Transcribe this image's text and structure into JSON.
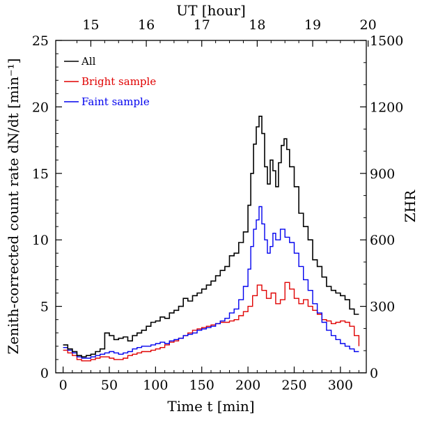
{
  "chart_data": {
    "type": "line",
    "xlabel": "Time t [min]",
    "x2label": "UT [hour]",
    "ylabel": "Zenith-corrected count rate dN/dt [min⁻¹]",
    "y2label": "ZHR",
    "xlim": [
      -8,
      328
    ],
    "ylim": [
      0,
      25
    ],
    "y2lim": [
      0,
      1500
    ],
    "x_ticks": [
      "0",
      "50",
      "100",
      "150",
      "200",
      "250",
      "300"
    ],
    "x2_ticks": [
      "15",
      "16",
      "17",
      "18",
      "19",
      "20"
    ],
    "y_ticks": [
      "0",
      "5",
      "10",
      "15",
      "20",
      "25"
    ],
    "y2_ticks": [
      "0",
      "300",
      "600",
      "900",
      "1200",
      "1500"
    ],
    "grid": false,
    "legend": "top-left",
    "colors": {
      "All": "#000000",
      "Bright sample": "#e00000",
      "Faint sample": "#0000ee"
    },
    "series": [
      {
        "name": "All",
        "x": [
          0,
          5,
          10,
          15,
          20,
          25,
          30,
          35,
          40,
          45,
          50,
          55,
          60,
          65,
          70,
          75,
          80,
          85,
          90,
          95,
          100,
          105,
          110,
          115,
          120,
          125,
          130,
          135,
          140,
          145,
          150,
          155,
          160,
          165,
          170,
          175,
          180,
          185,
          190,
          195,
          200,
          203,
          206,
          209,
          212,
          215,
          218,
          221,
          224,
          227,
          230,
          233,
          236,
          239,
          242,
          245,
          250,
          255,
          260,
          265,
          270,
          275,
          280,
          285,
          290,
          295,
          300,
          305,
          310,
          315,
          320
        ],
        "y": [
          2.1,
          1.8,
          1.6,
          1.3,
          1.2,
          1.3,
          1.4,
          1.6,
          1.8,
          3.0,
          2.8,
          2.5,
          2.6,
          2.7,
          2.4,
          2.8,
          3.0,
          3.2,
          3.5,
          3.8,
          3.9,
          4.2,
          4.1,
          4.5,
          4.7,
          5.0,
          5.6,
          5.4,
          5.8,
          6.0,
          6.3,
          6.6,
          6.9,
          7.3,
          7.7,
          8.0,
          8.8,
          9.0,
          9.8,
          10.6,
          12.6,
          15.0,
          17.2,
          18.5,
          19.3,
          18.0,
          15.5,
          14.2,
          16.0,
          15.2,
          14.0,
          15.8,
          17.1,
          17.6,
          16.8,
          15.5,
          14.0,
          12.0,
          11.0,
          10.0,
          8.5,
          8.0,
          7.2,
          6.5,
          6.2,
          6.0,
          5.8,
          5.5,
          4.8,
          4.4,
          4.4
        ]
      },
      {
        "name": "Bright sample",
        "x": [
          0,
          5,
          10,
          15,
          20,
          25,
          30,
          35,
          40,
          45,
          50,
          55,
          60,
          65,
          70,
          75,
          80,
          85,
          90,
          95,
          100,
          105,
          110,
          115,
          120,
          125,
          130,
          135,
          140,
          145,
          150,
          155,
          160,
          165,
          170,
          175,
          180,
          185,
          190,
          195,
          200,
          205,
          210,
          215,
          220,
          225,
          230,
          235,
          240,
          245,
          250,
          255,
          260,
          265,
          270,
          275,
          280,
          285,
          290,
          295,
          300,
          305,
          310,
          315,
          320
        ],
        "y": [
          1.7,
          1.5,
          1.3,
          1.0,
          0.9,
          0.9,
          1.0,
          1.1,
          1.2,
          1.2,
          1.1,
          1.0,
          1.0,
          1.1,
          1.3,
          1.4,
          1.5,
          1.6,
          1.6,
          1.7,
          1.8,
          1.9,
          2.1,
          2.3,
          2.4,
          2.6,
          2.8,
          3.0,
          3.2,
          3.3,
          3.4,
          3.5,
          3.6,
          3.7,
          3.8,
          3.8,
          3.9,
          4.0,
          4.3,
          4.6,
          5.0,
          5.8,
          6.6,
          6.2,
          5.6,
          6.0,
          5.2,
          5.5,
          6.8,
          6.3,
          5.6,
          5.2,
          5.5,
          5.0,
          4.7,
          4.4,
          4.0,
          3.9,
          3.7,
          3.8,
          3.9,
          3.8,
          3.5,
          2.8,
          2.0
        ]
      },
      {
        "name": "Faint sample",
        "x": [
          0,
          5,
          10,
          15,
          20,
          25,
          30,
          35,
          40,
          45,
          50,
          55,
          60,
          65,
          70,
          75,
          80,
          85,
          90,
          95,
          100,
          105,
          110,
          115,
          120,
          125,
          130,
          135,
          140,
          145,
          150,
          155,
          160,
          165,
          170,
          175,
          180,
          185,
          190,
          195,
          200,
          203,
          206,
          209,
          212,
          215,
          218,
          221,
          224,
          227,
          230,
          235,
          240,
          245,
          250,
          255,
          260,
          265,
          270,
          275,
          280,
          285,
          290,
          295,
          300,
          305,
          310,
          315,
          320
        ],
        "y": [
          1.9,
          1.7,
          1.5,
          1.2,
          1.1,
          1.1,
          1.2,
          1.3,
          1.4,
          1.5,
          1.6,
          1.5,
          1.4,
          1.5,
          1.6,
          1.8,
          1.9,
          2.0,
          2.0,
          2.1,
          2.2,
          2.3,
          2.2,
          2.4,
          2.5,
          2.6,
          2.8,
          2.9,
          3.0,
          3.2,
          3.3,
          3.4,
          3.5,
          3.7,
          3.9,
          4.1,
          4.5,
          4.8,
          5.5,
          6.5,
          7.8,
          9.5,
          10.8,
          11.5,
          12.5,
          11.2,
          10.0,
          9.0,
          9.5,
          10.5,
          10.0,
          10.8,
          10.2,
          9.8,
          9.0,
          8.0,
          7.0,
          6.2,
          5.2,
          4.5,
          3.8,
          3.2,
          2.8,
          2.5,
          2.2,
          2.0,
          1.8,
          1.6,
          1.6
        ]
      }
    ]
  }
}
